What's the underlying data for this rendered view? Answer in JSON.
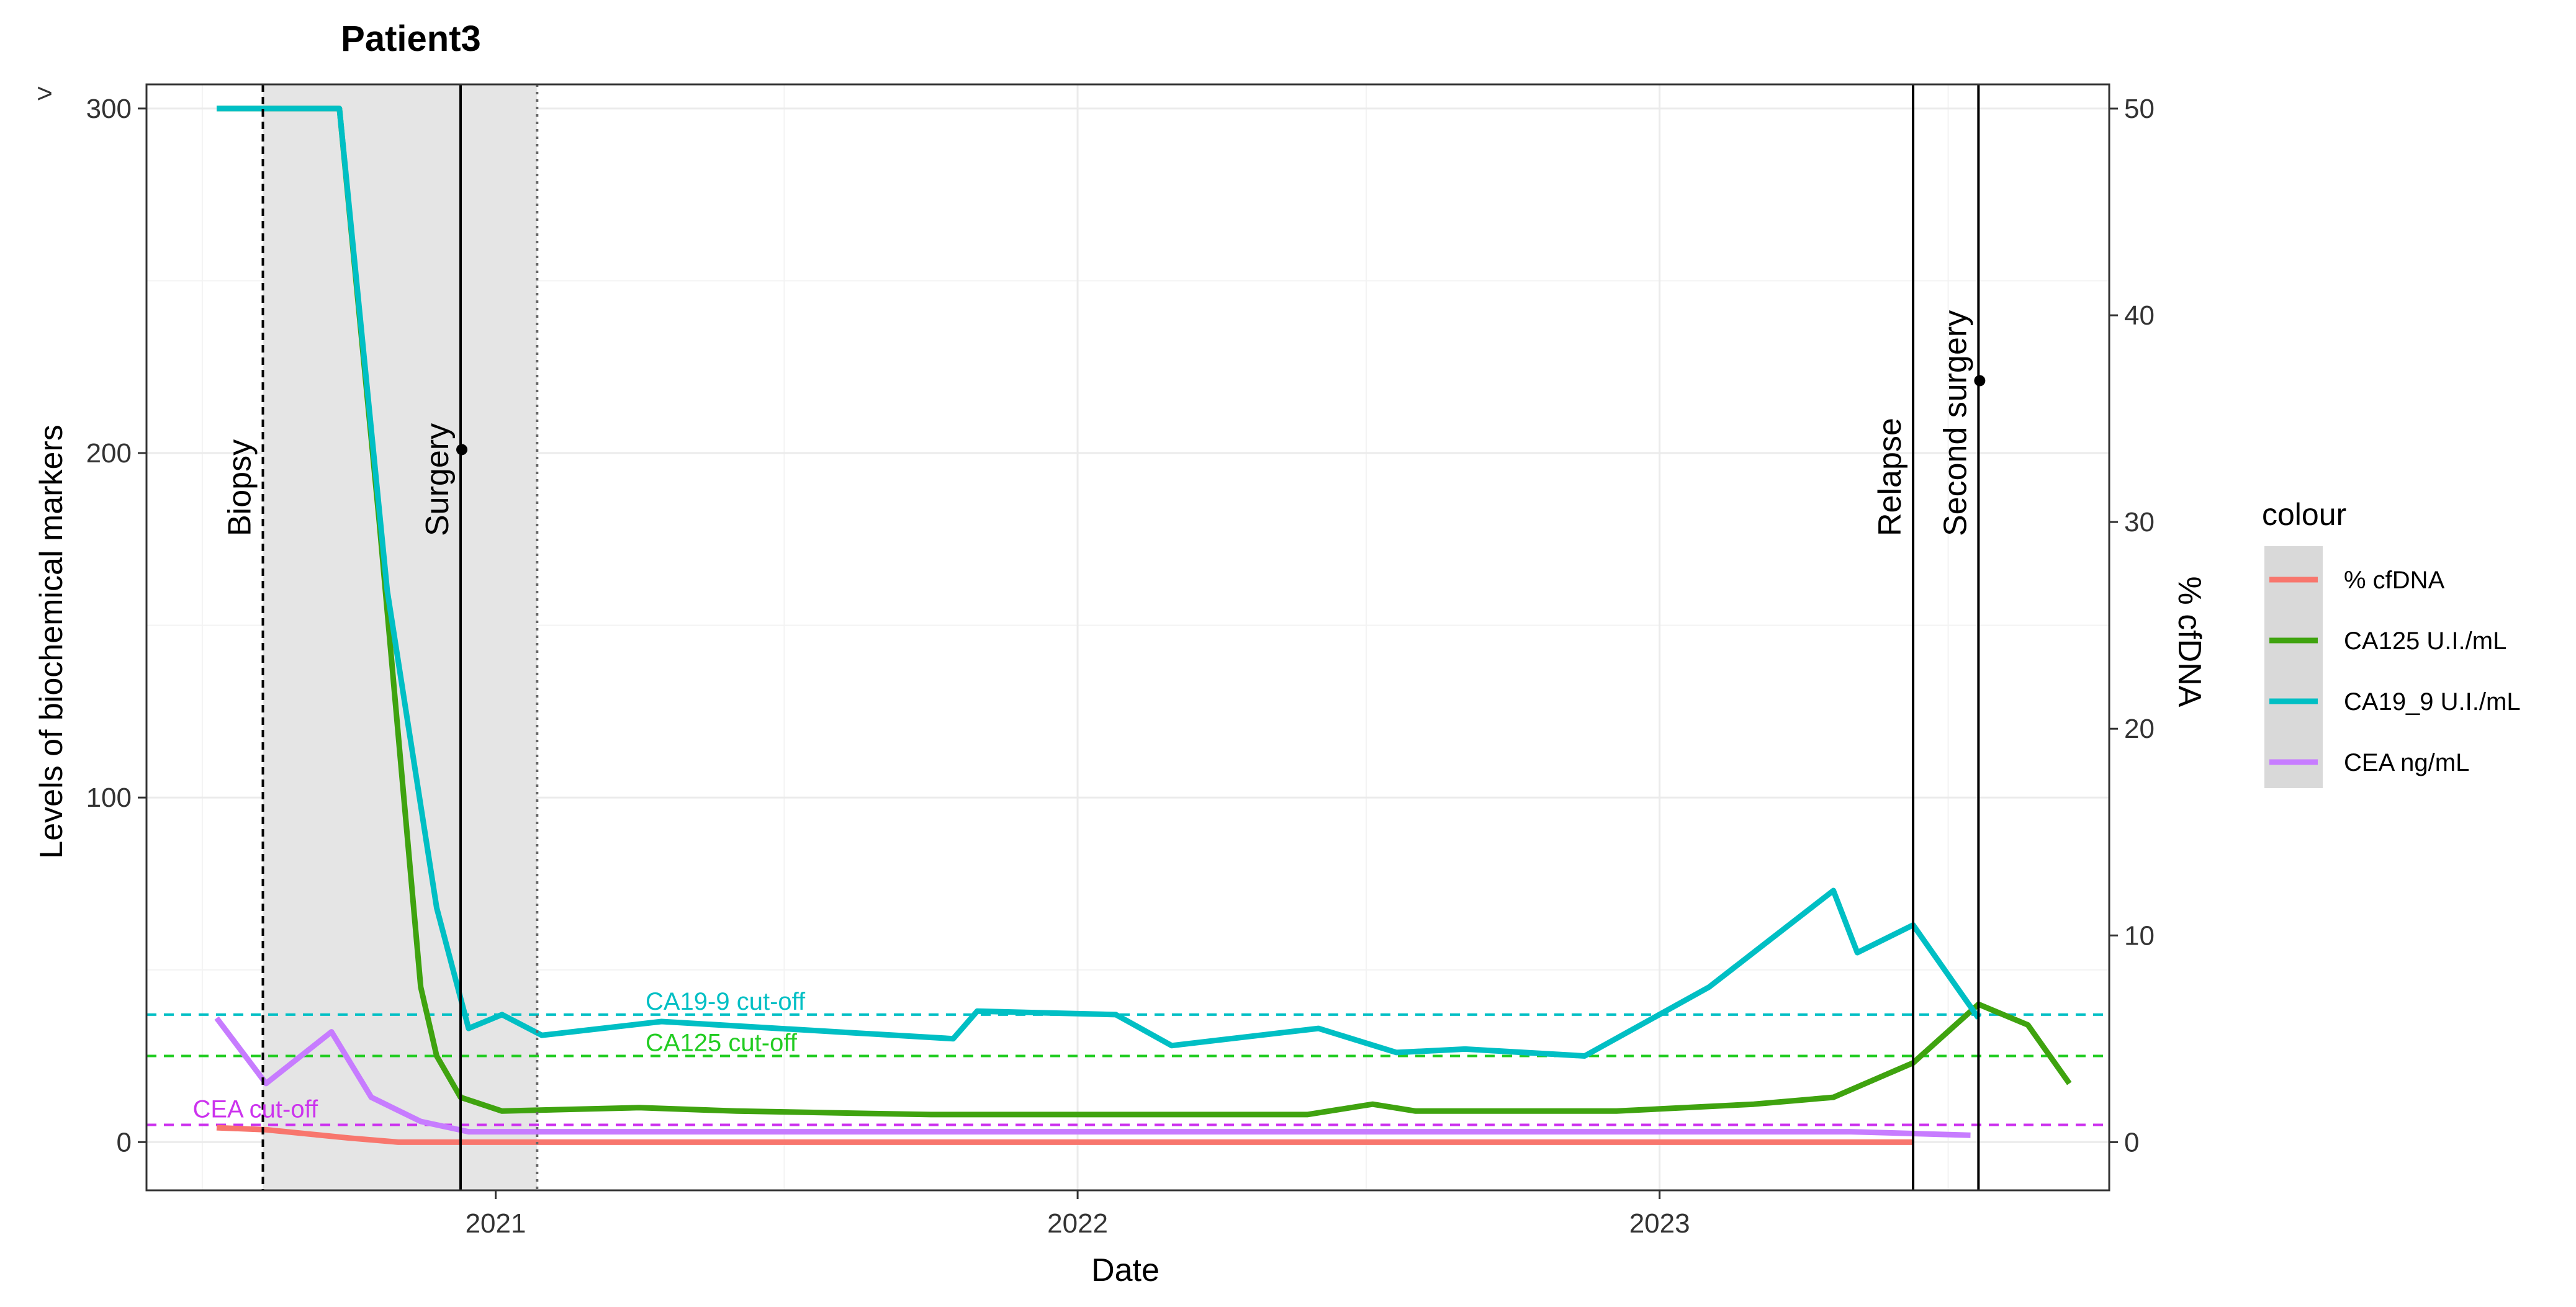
{
  "chart_data": {
    "type": "line",
    "title": "Patient3",
    "xlabel": "Date",
    "ylabel": "Levels of biochemical markers",
    "y2label": "% cfDNA",
    "ylim": [
      -14,
      307
    ],
    "y2lim": [
      -2.33,
      51.17
    ],
    "xlim": [
      "2020-05-27",
      "2023-10-10"
    ],
    "x_ticks": [
      {
        "date": "2021-01-01",
        "label": "2021"
      },
      {
        "date": "2022-01-01",
        "label": "2022"
      },
      {
        "date": "2023-01-01",
        "label": "2023"
      }
    ],
    "y_ticks": [
      0,
      100,
      200,
      300
    ],
    "y_tick_labels": [
      "0",
      "100",
      "200",
      "300"
    ],
    "y2_ticks": [
      0,
      10,
      20,
      30,
      40,
      50
    ],
    "y2_tick_labels": [
      "0",
      "10",
      "20",
      "30",
      "40",
      "50"
    ],
    "cap_marker": ">",
    "grid": true,
    "shaded_region": {
      "from": "2020-08-08",
      "to": "2021-01-27"
    },
    "events": [
      {
        "date": "2020-08-08",
        "label": "Biopsy",
        "style": "dashed"
      },
      {
        "date": "2020-12-10",
        "label": "Surgery",
        "style": "solid"
      },
      {
        "date": "2021-01-27",
        "label": "",
        "style": "dotted"
      },
      {
        "date": "2023-06-09",
        "label": "Relapse",
        "style": "solid"
      },
      {
        "date": "2023-07-20",
        "label": "Second surgery",
        "style": "solid"
      }
    ],
    "event_points": [
      {
        "date": "2020-12-10",
        "y": 201
      },
      {
        "date": "2023-07-20",
        "y": 221
      }
    ],
    "cutoffs": [
      {
        "label": "CA19-9 cut-off",
        "y": 37,
        "color": "#00BFC4"
      },
      {
        "label": "CA125 cut-off",
        "y": 25,
        "color": "#22CC22"
      },
      {
        "label": "CEA cut-off",
        "y": 5,
        "color": "#CC33EE"
      }
    ],
    "series": [
      {
        "name": "% cfDNA",
        "axis": "right",
        "color": "#F8766D",
        "points": [
          [
            "2020-07-10",
            0.7
          ],
          [
            "2020-08-10",
            0.6
          ],
          [
            "2020-10-01",
            0.2
          ],
          [
            "2020-11-01",
            0.0
          ],
          [
            "2023-06-09",
            0.0
          ]
        ]
      },
      {
        "name": "CA125 U.I./mL",
        "axis": "left",
        "color": "#3FA30F",
        "points": [
          [
            "2020-07-10",
            300
          ],
          [
            "2020-08-10",
            300
          ],
          [
            "2020-09-25",
            300
          ],
          [
            "2020-10-20",
            180
          ],
          [
            "2020-11-15",
            45
          ],
          [
            "2020-11-25",
            25
          ],
          [
            "2020-12-10",
            13
          ],
          [
            "2021-01-05",
            9
          ],
          [
            "2021-04-01",
            10
          ],
          [
            "2021-06-01",
            9
          ],
          [
            "2021-10-01",
            8
          ],
          [
            "2022-05-25",
            8
          ],
          [
            "2022-07-05",
            11
          ],
          [
            "2022-08-01",
            9
          ],
          [
            "2022-12-05",
            9
          ],
          [
            "2023-03-01",
            11
          ],
          [
            "2023-04-20",
            13
          ],
          [
            "2023-06-09",
            23
          ],
          [
            "2023-07-20",
            40
          ],
          [
            "2023-08-20",
            34
          ],
          [
            "2023-09-15",
            17
          ]
        ]
      },
      {
        "name": "CA19_9 U.I./mL",
        "axis": "left",
        "color": "#00BFC4",
        "points": [
          [
            "2020-07-10",
            300
          ],
          [
            "2020-08-10",
            300
          ],
          [
            "2020-09-25",
            300
          ],
          [
            "2020-10-25",
            160
          ],
          [
            "2020-11-25",
            68
          ],
          [
            "2020-12-15",
            33
          ],
          [
            "2021-01-05",
            37
          ],
          [
            "2021-01-30",
            31
          ],
          [
            "2021-04-15",
            35
          ],
          [
            "2021-10-15",
            30
          ],
          [
            "2021-10-30",
            38
          ],
          [
            "2022-01-25",
            37
          ],
          [
            "2022-03-01",
            28
          ],
          [
            "2022-06-01",
            33
          ],
          [
            "2022-07-20",
            26
          ],
          [
            "2022-09-01",
            27
          ],
          [
            "2022-11-15",
            25
          ],
          [
            "2023-02-01",
            45
          ],
          [
            "2023-04-20",
            73
          ],
          [
            "2023-05-05",
            55
          ],
          [
            "2023-06-09",
            63
          ],
          [
            "2023-07-20",
            36
          ]
        ]
      },
      {
        "name": "CEA ng/mL",
        "axis": "left",
        "color": "#C77CFF",
        "points": [
          [
            "2020-07-10",
            36
          ],
          [
            "2020-08-10",
            17
          ],
          [
            "2020-09-20",
            32
          ],
          [
            "2020-10-15",
            13
          ],
          [
            "2020-11-15",
            6
          ],
          [
            "2020-12-15",
            3
          ],
          [
            "2023-05-01",
            3
          ],
          [
            "2023-07-15",
            2
          ]
        ]
      }
    ],
    "legend": {
      "title": "colour",
      "position": "right",
      "entries": [
        "% cfDNA",
        "CA125 U.I./mL",
        "CA19_9 U.I./mL",
        "CEA ng/mL"
      ]
    }
  }
}
